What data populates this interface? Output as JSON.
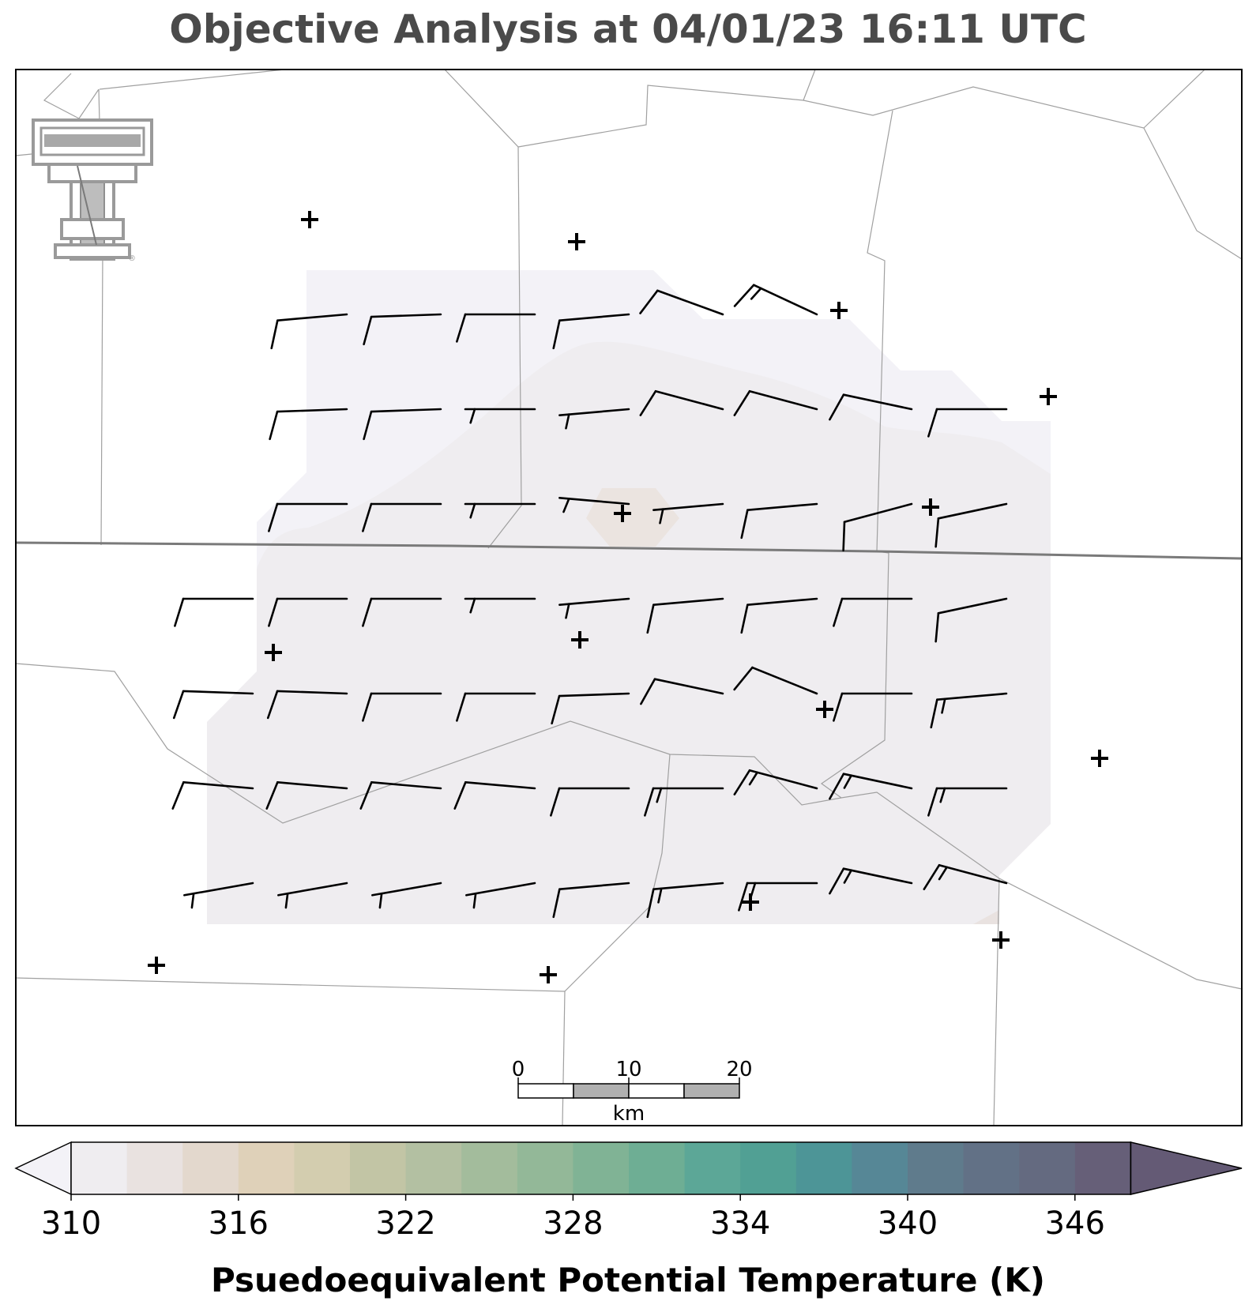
{
  "title": "Objective Analysis at 04/01/23 16:11 UTC",
  "colorbar": {
    "label": "Psuedoequivalent Potential Temperature (K)",
    "tick_labels": [
      "310",
      "316",
      "322",
      "328",
      "334",
      "340",
      "346"
    ],
    "ticks": [
      310,
      316,
      322,
      328,
      334,
      340,
      346
    ],
    "bounds": [
      310,
      350
    ],
    "step": 2,
    "extend": "both",
    "under_color": "#f3f2f7",
    "colors": [
      "#efedf0",
      "#e9e2e0",
      "#e3d8cd",
      "#dfd1b9",
      "#d3cdaf",
      "#c2c5a5",
      "#b3c0a2",
      "#a3bc9c",
      "#93b898",
      "#80b395",
      "#6eae94",
      "#5ca797",
      "#51a094",
      "#4d9597",
      "#568796",
      "#5f7b8c",
      "#627186",
      "#646a80",
      "#665f78"
    ],
    "over_color": "#645a75"
  },
  "scale_bar": {
    "labels": [
      "0",
      "10",
      "20"
    ],
    "unit": "km"
  },
  "logo": {
    "name": "Texas Tech Double T",
    "mark": "®"
  },
  "stations": [
    {
      "id": "s1"
    },
    {
      "id": "s2"
    },
    {
      "id": "s3"
    },
    {
      "id": "s4"
    },
    {
      "id": "s5"
    },
    {
      "id": "s6"
    },
    {
      "id": "s7"
    },
    {
      "id": "s8"
    },
    {
      "id": "s9"
    },
    {
      "id": "s10"
    },
    {
      "id": "s11"
    },
    {
      "id": "s12"
    },
    {
      "id": "s13"
    },
    {
      "id": "s14"
    },
    {
      "id": "s15"
    }
  ],
  "wind_barbs": [
    [
      null,
      {
        "kt": 10,
        "dir": 265
      },
      {
        "kt": 10,
        "dir": 268
      },
      {
        "kt": 10,
        "dir": 270
      },
      {
        "kt": 10,
        "dir": 265
      },
      {
        "kt": 10,
        "dir": 290
      },
      {
        "kt": 15,
        "dir": 295
      },
      null,
      null
    ],
    [
      null,
      {
        "kt": 10,
        "dir": 268
      },
      {
        "kt": 10,
        "dir": 268
      },
      {
        "kt": 5,
        "dir": 270
      },
      {
        "kt": 5,
        "dir": 265
      },
      {
        "kt": 10,
        "dir": 285
      },
      {
        "kt": 10,
        "dir": 285
      },
      {
        "kt": 10,
        "dir": 282
      },
      {
        "kt": 10,
        "dir": 270
      }
    ],
    [
      null,
      {
        "kt": 10,
        "dir": 270
      },
      {
        "kt": 10,
        "dir": 270
      },
      {
        "kt": 5,
        "dir": 270
      },
      {
        "kt": 5,
        "dir": 275
      },
      {
        "kt": 5,
        "dir": 265
      },
      {
        "kt": 10,
        "dir": 265
      },
      {
        "kt": 10,
        "dir": 255
      },
      {
        "kt": 10,
        "dir": 258
      }
    ],
    [
      {
        "kt": 10,
        "dir": 270
      },
      {
        "kt": 10,
        "dir": 270
      },
      {
        "kt": 10,
        "dir": 270
      },
      {
        "kt": 5,
        "dir": 270
      },
      {
        "kt": 5,
        "dir": 265
      },
      {
        "kt": 10,
        "dir": 265
      },
      {
        "kt": 10,
        "dir": 265
      },
      {
        "kt": 10,
        "dir": 270
      },
      {
        "kt": 10,
        "dir": 258
      }
    ],
    [
      {
        "kt": 10,
        "dir": 272
      },
      {
        "kt": 10,
        "dir": 272
      },
      {
        "kt": 10,
        "dir": 270
      },
      {
        "kt": 10,
        "dir": 270
      },
      {
        "kt": 10,
        "dir": 268
      },
      {
        "kt": 10,
        "dir": 282
      },
      {
        "kt": 10,
        "dir": 292
      },
      {
        "kt": 10,
        "dir": 270
      },
      {
        "kt": 15,
        "dir": 265
      }
    ],
    [
      {
        "kt": 10,
        "dir": 275
      },
      {
        "kt": 10,
        "dir": 275
      },
      {
        "kt": 10,
        "dir": 275
      },
      {
        "kt": 10,
        "dir": 275
      },
      {
        "kt": 10,
        "dir": 270
      },
      {
        "kt": 15,
        "dir": 270
      },
      {
        "kt": 15,
        "dir": 285
      },
      {
        "kt": 15,
        "dir": 282
      },
      {
        "kt": 15,
        "dir": 270
      }
    ],
    [
      {
        "kt": 5,
        "dir": 260
      },
      {
        "kt": 5,
        "dir": 260
      },
      {
        "kt": 5,
        "dir": 260
      },
      {
        "kt": 5,
        "dir": 260
      },
      {
        "kt": 10,
        "dir": 265
      },
      {
        "kt": 15,
        "dir": 265
      },
      {
        "kt": 15,
        "dir": 270
      },
      {
        "kt": 15,
        "dir": 282
      },
      {
        "kt": 15,
        "dir": 285
      }
    ]
  ]
}
